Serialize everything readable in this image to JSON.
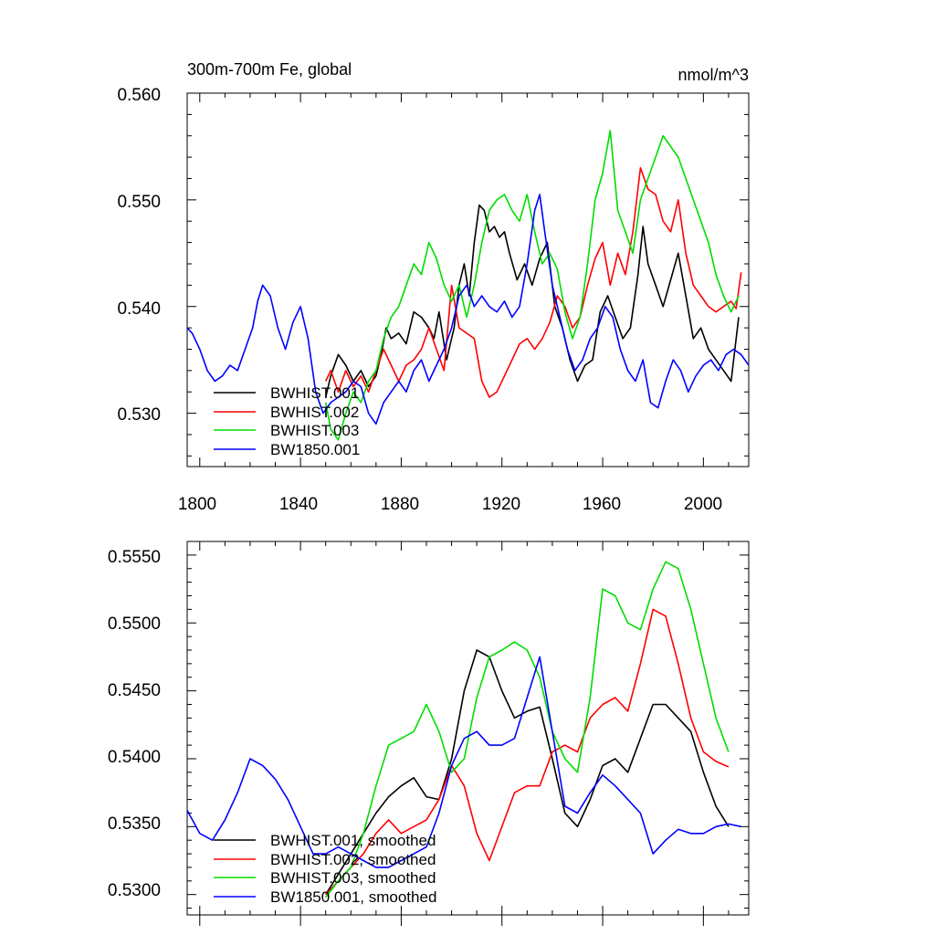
{
  "chart_data": [
    {
      "type": "line",
      "title": "300m-700m Fe, global",
      "units": "nmol/m^3",
      "xlim": [
        1795,
        2018
      ],
      "ylim": [
        0.525,
        0.56
      ],
      "x_ticks": [
        1800,
        1840,
        1880,
        1920,
        1960,
        2000
      ],
      "x_tick_labels": [
        "1800",
        "1840",
        "1880",
        "1920",
        "1960",
        "2000"
      ],
      "y_ticks": [
        0.53,
        0.54,
        0.55,
        0.56
      ],
      "y_tick_labels": [
        "0.530",
        "0.540",
        "0.550",
        "0.560"
      ],
      "series": [
        {
          "name": "BWHIST.001",
          "color": "#000000",
          "x": [
            1850,
            1852,
            1855,
            1858,
            1861,
            1864,
            1867,
            1870,
            1872,
            1874,
            1876,
            1879,
            1882,
            1885,
            1888,
            1891,
            1893,
            1895,
            1898,
            1901,
            1903,
            1905,
            1907,
            1909,
            1911,
            1913,
            1915,
            1917,
            1919,
            1921,
            1923,
            1926,
            1929,
            1932,
            1935,
            1938,
            1941,
            1944,
            1947,
            1950,
            1953,
            1956,
            1959,
            1962,
            1965,
            1968,
            1971,
            1974,
            1976,
            1978,
            1981,
            1984,
            1987,
            1990,
            1993,
            1996,
            1999,
            2002,
            2005,
            2008,
            2011,
            2014
          ],
          "values": [
            0.5315,
            0.5335,
            0.5355,
            0.5345,
            0.533,
            0.534,
            0.5325,
            0.5335,
            0.5355,
            0.538,
            0.537,
            0.5375,
            0.5365,
            0.5395,
            0.539,
            0.538,
            0.537,
            0.5395,
            0.535,
            0.538,
            0.542,
            0.544,
            0.541,
            0.546,
            0.5495,
            0.549,
            0.547,
            0.5475,
            0.5465,
            0.547,
            0.545,
            0.5425,
            0.544,
            0.542,
            0.5445,
            0.546,
            0.54,
            0.538,
            0.535,
            0.533,
            0.5345,
            0.535,
            0.5395,
            0.541,
            0.539,
            0.537,
            0.538,
            0.543,
            0.5475,
            0.544,
            0.542,
            0.54,
            0.5425,
            0.545,
            0.541,
            0.537,
            0.538,
            0.536,
            0.535,
            0.534,
            0.533,
            0.539
          ]
        },
        {
          "name": "BWHIST.002",
          "color": "#ff0000",
          "x": [
            1850,
            1852,
            1855,
            1858,
            1861,
            1864,
            1867,
            1870,
            1873,
            1876,
            1879,
            1882,
            1885,
            1888,
            1891,
            1894,
            1897,
            1900,
            1903,
            1906,
            1909,
            1912,
            1915,
            1918,
            1921,
            1924,
            1927,
            1930,
            1933,
            1936,
            1939,
            1942,
            1945,
            1948,
            1951,
            1954,
            1957,
            1960,
            1963,
            1966,
            1969,
            1972,
            1975,
            1978,
            1981,
            1984,
            1987,
            1990,
            1993,
            1996,
            1999,
            2002,
            2005,
            2008,
            2011,
            2013,
            2015
          ],
          "values": [
            0.533,
            0.534,
            0.532,
            0.534,
            0.5325,
            0.5335,
            0.532,
            0.534,
            0.536,
            0.5345,
            0.533,
            0.5345,
            0.535,
            0.536,
            0.538,
            0.536,
            0.534,
            0.542,
            0.538,
            0.5375,
            0.537,
            0.533,
            0.5315,
            0.532,
            0.5335,
            0.535,
            0.5365,
            0.537,
            0.536,
            0.537,
            0.5385,
            0.541,
            0.54,
            0.538,
            0.539,
            0.542,
            0.5445,
            0.546,
            0.542,
            0.545,
            0.543,
            0.547,
            0.553,
            0.551,
            0.5505,
            0.548,
            0.547,
            0.55,
            0.545,
            0.542,
            0.541,
            0.54,
            0.5395,
            0.54,
            0.5405,
            0.5398,
            0.5432
          ]
        },
        {
          "name": "BWHIST.003",
          "color": "#00dd00",
          "x": [
            1850,
            1852,
            1855,
            1858,
            1861,
            1864,
            1867,
            1870,
            1873,
            1876,
            1879,
            1882,
            1885,
            1888,
            1891,
            1894,
            1897,
            1900,
            1903,
            1906,
            1909,
            1912,
            1915,
            1918,
            1921,
            1924,
            1927,
            1930,
            1933,
            1936,
            1939,
            1942,
            1945,
            1948,
            1951,
            1954,
            1957,
            1960,
            1963,
            1966,
            1969,
            1972,
            1975,
            1978,
            1981,
            1984,
            1987,
            1990,
            1993,
            1996,
            1999,
            2002,
            2005,
            2008,
            2011,
            2014
          ],
          "values": [
            0.531,
            0.5285,
            0.5275,
            0.53,
            0.532,
            0.531,
            0.533,
            0.534,
            0.537,
            0.539,
            0.54,
            0.542,
            0.544,
            0.543,
            0.546,
            0.5445,
            0.542,
            0.5405,
            0.542,
            0.539,
            0.542,
            0.546,
            0.549,
            0.55,
            0.5505,
            0.549,
            0.548,
            0.5505,
            0.547,
            0.544,
            0.545,
            0.5435,
            0.5395,
            0.537,
            0.539,
            0.544,
            0.55,
            0.5525,
            0.5565,
            0.549,
            0.547,
            0.545,
            0.55,
            0.552,
            0.554,
            0.556,
            0.555,
            0.554,
            0.552,
            0.55,
            0.548,
            0.546,
            0.543,
            0.541,
            0.5395,
            0.541
          ]
        },
        {
          "name": "BW1850.001",
          "color": "#0000ff",
          "x": [
            1795,
            1797,
            1800,
            1803,
            1806,
            1809,
            1812,
            1815,
            1818,
            1821,
            1823,
            1825,
            1828,
            1831,
            1834,
            1837,
            1840,
            1843,
            1846,
            1849,
            1852,
            1855,
            1858,
            1861,
            1864,
            1867,
            1870,
            1873,
            1876,
            1879,
            1882,
            1885,
            1888,
            1891,
            1894,
            1897,
            1900,
            1903,
            1906,
            1909,
            1912,
            1915,
            1918,
            1921,
            1924,
            1927,
            1930,
            1933,
            1935,
            1937,
            1940,
            1943,
            1946,
            1949,
            1952,
            1955,
            1958,
            1961,
            1964,
            1967,
            1970,
            1973,
            1976,
            1979,
            1982,
            1985,
            1988,
            1991,
            1994,
            1997,
            2000,
            2003,
            2006,
            2009,
            2012,
            2015,
            2018
          ],
          "values": [
            0.538,
            0.5375,
            0.536,
            0.534,
            0.533,
            0.5335,
            0.5345,
            0.534,
            0.536,
            0.538,
            0.5405,
            0.542,
            0.541,
            0.538,
            0.536,
            0.5385,
            0.54,
            0.537,
            0.532,
            0.53,
            0.531,
            0.5315,
            0.532,
            0.533,
            0.5325,
            0.53,
            0.529,
            0.531,
            0.532,
            0.533,
            0.532,
            0.534,
            0.535,
            0.533,
            0.5345,
            0.536,
            0.538,
            0.541,
            0.542,
            0.54,
            0.541,
            0.54,
            0.5395,
            0.5405,
            0.539,
            0.54,
            0.544,
            0.549,
            0.5505,
            0.547,
            0.542,
            0.539,
            0.536,
            0.534,
            0.535,
            0.537,
            0.538,
            0.54,
            0.539,
            0.536,
            0.534,
            0.533,
            0.535,
            0.531,
            0.5305,
            0.533,
            0.535,
            0.534,
            0.532,
            0.5335,
            0.5345,
            0.535,
            0.534,
            0.5355,
            0.536,
            0.5355,
            0.5345
          ]
        }
      ]
    },
    {
      "type": "line",
      "title": "",
      "xlim": [
        1795,
        2018
      ],
      "ylim": [
        0.5285,
        0.556
      ],
      "x_ticks": [
        1800,
        1840,
        1880,
        1920,
        1960,
        2000
      ],
      "y_ticks": [
        0.53,
        0.535,
        0.54,
        0.545,
        0.55,
        0.555
      ],
      "y_tick_labels": [
        "0.5300",
        "0.5350",
        "0.5400",
        "0.5450",
        "0.5500",
        "0.5550"
      ],
      "series": [
        {
          "name": "BWHIST.001, smoothed",
          "color": "#000000",
          "x": [
            1850,
            1855,
            1860,
            1865,
            1870,
            1875,
            1880,
            1885,
            1890,
            1895,
            1900,
            1905,
            1910,
            1915,
            1920,
            1925,
            1930,
            1935,
            1940,
            1945,
            1950,
            1955,
            1960,
            1965,
            1970,
            1975,
            1980,
            1985,
            1990,
            1995,
            2000,
            2005,
            2010
          ],
          "values": [
            0.53,
            0.5315,
            0.533,
            0.5345,
            0.536,
            0.5372,
            0.538,
            0.5386,
            0.5372,
            0.537,
            0.54,
            0.545,
            0.548,
            0.5475,
            0.545,
            0.543,
            0.5435,
            0.5438,
            0.54,
            0.536,
            0.535,
            0.537,
            0.5395,
            0.54,
            0.539,
            0.5415,
            0.544,
            0.544,
            0.543,
            0.542,
            0.539,
            0.5365,
            0.535
          ]
        },
        {
          "name": "BWHIST.002, smoothed",
          "color": "#ff0000",
          "x": [
            1850,
            1855,
            1860,
            1865,
            1870,
            1875,
            1880,
            1885,
            1890,
            1895,
            1900,
            1905,
            1910,
            1915,
            1920,
            1925,
            1930,
            1935,
            1940,
            1945,
            1950,
            1955,
            1960,
            1965,
            1970,
            1975,
            1980,
            1985,
            1990,
            1995,
            2000,
            2005,
            2010
          ],
          "values": [
            0.53,
            0.531,
            0.532,
            0.533,
            0.5345,
            0.5355,
            0.5345,
            0.535,
            0.5355,
            0.537,
            0.5395,
            0.538,
            0.5345,
            0.5325,
            0.535,
            0.5375,
            0.538,
            0.538,
            0.5405,
            0.541,
            0.5405,
            0.543,
            0.544,
            0.5445,
            0.5435,
            0.547,
            0.551,
            0.5505,
            0.547,
            0.543,
            0.5405,
            0.5398,
            0.5394
          ]
        },
        {
          "name": "BWHIST.003, smoothed",
          "color": "#00dd00",
          "x": [
            1850,
            1855,
            1860,
            1865,
            1870,
            1875,
            1880,
            1885,
            1890,
            1895,
            1900,
            1905,
            1910,
            1915,
            1920,
            1925,
            1930,
            1935,
            1940,
            1945,
            1950,
            1955,
            1960,
            1965,
            1970,
            1975,
            1980,
            1985,
            1990,
            1995,
            2000,
            2005,
            2010
          ],
          "values": [
            0.5298,
            0.531,
            0.532,
            0.5345,
            0.538,
            0.541,
            0.5415,
            0.542,
            0.544,
            0.542,
            0.539,
            0.54,
            0.5445,
            0.5475,
            0.548,
            0.5486,
            0.548,
            0.546,
            0.542,
            0.54,
            0.539,
            0.5445,
            0.5525,
            0.552,
            0.55,
            0.5495,
            0.5525,
            0.5545,
            0.554,
            0.551,
            0.547,
            0.543,
            0.5405
          ]
        },
        {
          "name": "BW1850.001, smoothed",
          "color": "#0000ff",
          "x": [
            1795,
            1800,
            1805,
            1810,
            1815,
            1820,
            1825,
            1830,
            1835,
            1840,
            1845,
            1850,
            1855,
            1860,
            1865,
            1870,
            1875,
            1880,
            1885,
            1890,
            1895,
            1900,
            1905,
            1910,
            1915,
            1920,
            1925,
            1930,
            1935,
            1940,
            1945,
            1950,
            1955,
            1960,
            1965,
            1970,
            1975,
            1980,
            1985,
            1990,
            1995,
            2000,
            2005,
            2010,
            2015
          ],
          "values": [
            0.5362,
            0.5345,
            0.534,
            0.5355,
            0.5375,
            0.54,
            0.5395,
            0.5385,
            0.537,
            0.535,
            0.533,
            0.533,
            0.5335,
            0.533,
            0.5325,
            0.532,
            0.532,
            0.5325,
            0.533,
            0.5335,
            0.536,
            0.5395,
            0.5415,
            0.542,
            0.541,
            0.541,
            0.5415,
            0.5445,
            0.5475,
            0.542,
            0.5365,
            0.536,
            0.5375,
            0.5388,
            0.538,
            0.537,
            0.536,
            0.533,
            0.534,
            0.5348,
            0.5345,
            0.5345,
            0.535,
            0.5352,
            0.535
          ]
        }
      ]
    }
  ]
}
